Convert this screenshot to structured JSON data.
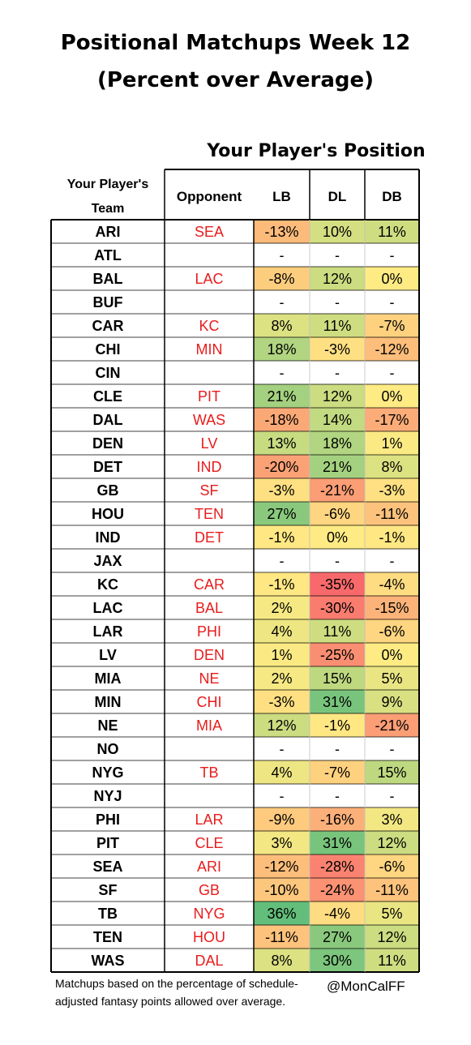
{
  "title_line1": "Positional Matchups Week 12",
  "title_line2": "(Percent over Average)",
  "position_header": "Your Player's Position",
  "footnote": "Matchups based on the percentage of schedule-adjusted fantasy points allowed over average.",
  "credit": "@MonCalFF",
  "chart_data": {
    "type": "table",
    "columns": [
      "Your Player's Team",
      "Opponent",
      "LB",
      "DL",
      "DB"
    ],
    "color_scale": {
      "low": "#f8696b",
      "mid": "#ffeb84",
      "high": "#63be7b",
      "min": -35,
      "max": 36,
      "mid_value": 0
    },
    "rows": [
      {
        "team": "ARI",
        "opp": "SEA",
        "LB": "-13%",
        "DL": "10%",
        "DB": "11%"
      },
      {
        "team": "ATL",
        "opp": "",
        "LB": "-",
        "DL": "-",
        "DB": "-"
      },
      {
        "team": "BAL",
        "opp": "LAC",
        "LB": "-8%",
        "DL": "12%",
        "DB": "0%"
      },
      {
        "team": "BUF",
        "opp": "",
        "LB": "-",
        "DL": "-",
        "DB": "-"
      },
      {
        "team": "CAR",
        "opp": "KC",
        "LB": "8%",
        "DL": "11%",
        "DB": "-7%"
      },
      {
        "team": "CHI",
        "opp": "MIN",
        "LB": "18%",
        "DL": "-3%",
        "DB": "-12%"
      },
      {
        "team": "CIN",
        "opp": "",
        "LB": "-",
        "DL": "-",
        "DB": "-"
      },
      {
        "team": "CLE",
        "opp": "PIT",
        "LB": "21%",
        "DL": "12%",
        "DB": "0%"
      },
      {
        "team": "DAL",
        "opp": "WAS",
        "LB": "-18%",
        "DL": "14%",
        "DB": "-17%"
      },
      {
        "team": "DEN",
        "opp": "LV",
        "LB": "13%",
        "DL": "18%",
        "DB": "1%"
      },
      {
        "team": "DET",
        "opp": "IND",
        "LB": "-20%",
        "DL": "21%",
        "DB": "8%"
      },
      {
        "team": "GB",
        "opp": "SF",
        "LB": "-3%",
        "DL": "-21%",
        "DB": "-3%"
      },
      {
        "team": "HOU",
        "opp": "TEN",
        "LB": "27%",
        "DL": "-6%",
        "DB": "-11%"
      },
      {
        "team": "IND",
        "opp": "DET",
        "LB": "-1%",
        "DL": "0%",
        "DB": "-1%"
      },
      {
        "team": "JAX",
        "opp": "",
        "LB": "-",
        "DL": "-",
        "DB": "-"
      },
      {
        "team": "KC",
        "opp": "CAR",
        "LB": "-1%",
        "DL": "-35%",
        "DB": "-4%"
      },
      {
        "team": "LAC",
        "opp": "BAL",
        "LB": "2%",
        "DL": "-30%",
        "DB": "-15%"
      },
      {
        "team": "LAR",
        "opp": "PHI",
        "LB": "4%",
        "DL": "11%",
        "DB": "-6%"
      },
      {
        "team": "LV",
        "opp": "DEN",
        "LB": "1%",
        "DL": "-25%",
        "DB": "0%"
      },
      {
        "team": "MIA",
        "opp": "NE",
        "LB": "2%",
        "DL": "15%",
        "DB": "5%"
      },
      {
        "team": "MIN",
        "opp": "CHI",
        "LB": "-3%",
        "DL": "31%",
        "DB": "9%"
      },
      {
        "team": "NE",
        "opp": "MIA",
        "LB": "12%",
        "DL": "-1%",
        "DB": "-21%"
      },
      {
        "team": "NO",
        "opp": "",
        "LB": "-",
        "DL": "-",
        "DB": "-"
      },
      {
        "team": "NYG",
        "opp": "TB",
        "LB": "4%",
        "DL": "-7%",
        "DB": "15%"
      },
      {
        "team": "NYJ",
        "opp": "",
        "LB": "-",
        "DL": "-",
        "DB": "-"
      },
      {
        "team": "PHI",
        "opp": "LAR",
        "LB": "-9%",
        "DL": "-16%",
        "DB": "3%"
      },
      {
        "team": "PIT",
        "opp": "CLE",
        "LB": "3%",
        "DL": "31%",
        "DB": "12%"
      },
      {
        "team": "SEA",
        "opp": "ARI",
        "LB": "-12%",
        "DL": "-28%",
        "DB": "-6%"
      },
      {
        "team": "SF",
        "opp": "GB",
        "LB": "-10%",
        "DL": "-24%",
        "DB": "-11%"
      },
      {
        "team": "TB",
        "opp": "NYG",
        "LB": "36%",
        "DL": "-4%",
        "DB": "5%"
      },
      {
        "team": "TEN",
        "opp": "HOU",
        "LB": "-11%",
        "DL": "27%",
        "DB": "12%"
      },
      {
        "team": "WAS",
        "opp": "DAL",
        "LB": "8%",
        "DL": "30%",
        "DB": "11%"
      }
    ]
  },
  "colors": {
    "opponent_text": "#e81c1c",
    "border": "#000000",
    "grid_line": "#bfbfbf"
  }
}
